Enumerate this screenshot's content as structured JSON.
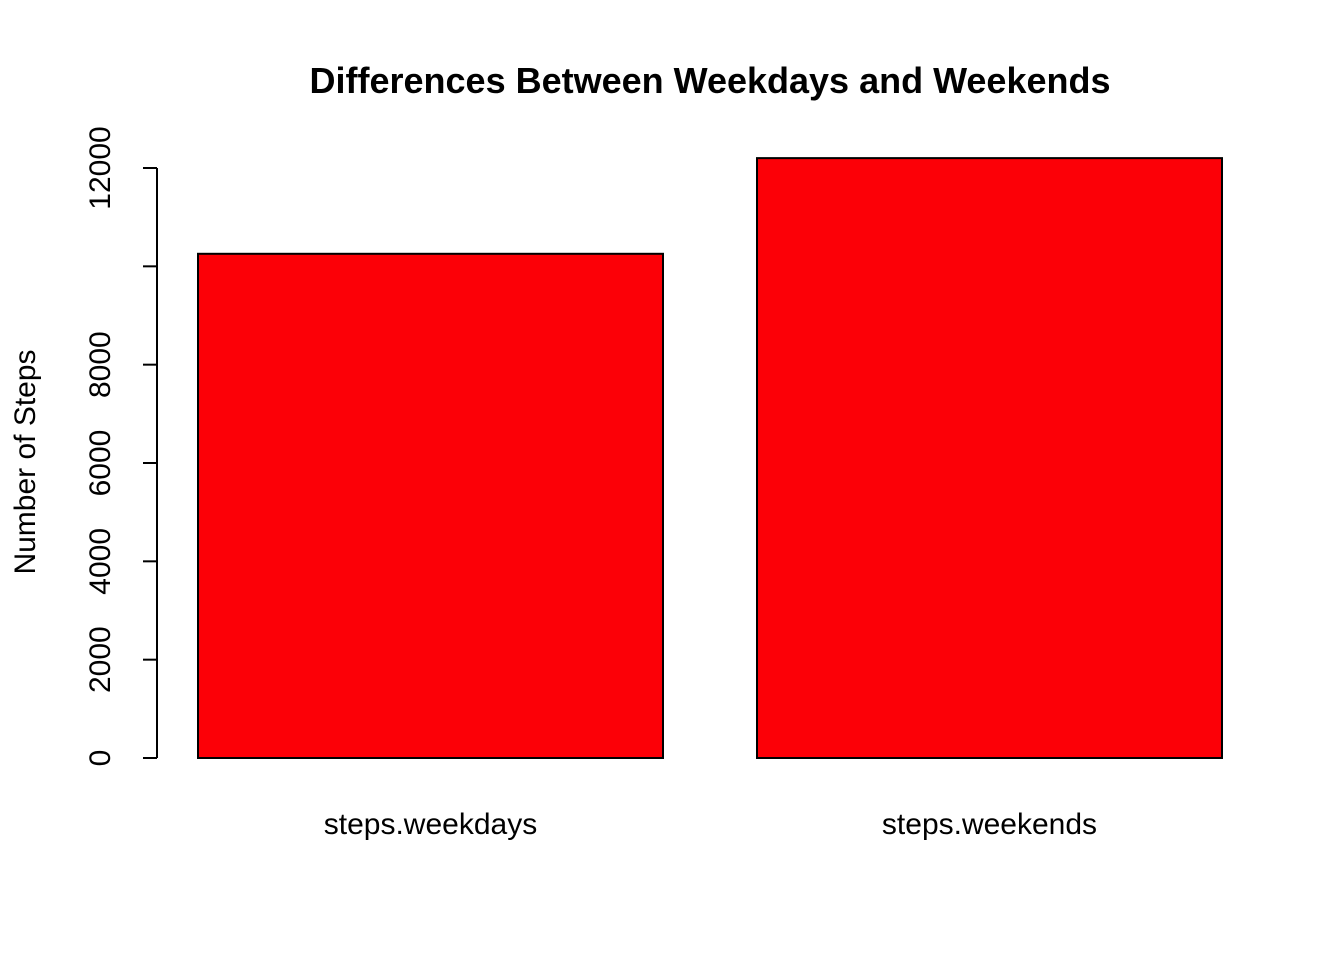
{
  "chart_data": {
    "type": "bar",
    "title": "Differences Between Weekdays and Weekends",
    "xlabel": "",
    "ylabel": "Number of Steps",
    "categories": [
      "steps.weekdays",
      "steps.weekends"
    ],
    "values": [
      10255,
      12201
    ],
    "ylim": [
      0,
      12000
    ],
    "yticks": [
      0,
      2000,
      4000,
      6000,
      8000,
      10000,
      12000
    ],
    "ytick_labels": [
      "0",
      "2000",
      "4000",
      "6000",
      "8000",
      "",
      "12000"
    ],
    "bar_color": "#fc0007",
    "grid": false,
    "legend": "none"
  }
}
